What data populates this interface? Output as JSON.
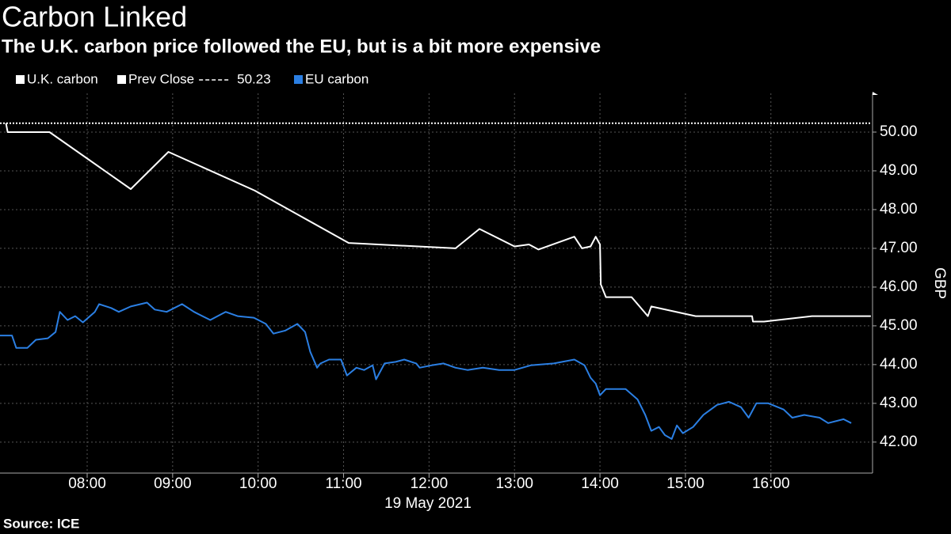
{
  "chart_data": {
    "type": "line",
    "title": "Carbon Linked",
    "subtitle": "The U.K. carbon price followed the EU, but is a bit more expensive",
    "x_label": "19 May 2021",
    "y_label": "GBP",
    "source": "Source: ICE",
    "grid": true,
    "xlim": [
      6.98,
      17.18
    ],
    "xticks": [
      {
        "value": 8,
        "label": "08:00"
      },
      {
        "value": 9,
        "label": "09:00"
      },
      {
        "value": 10,
        "label": "10:00"
      },
      {
        "value": 11,
        "label": "11:00"
      },
      {
        "value": 12,
        "label": "12:00"
      },
      {
        "value": 13,
        "label": "13:00"
      },
      {
        "value": 14,
        "label": "14:00"
      },
      {
        "value": 15,
        "label": "15:00"
      },
      {
        "value": 16,
        "label": "16:00"
      }
    ],
    "ylim": [
      41.2,
      51.0
    ],
    "yticks": [
      {
        "value": 42,
        "label": "42.00"
      },
      {
        "value": 43,
        "label": "43.00"
      },
      {
        "value": 44,
        "label": "44.00"
      },
      {
        "value": 45,
        "label": "45.00"
      },
      {
        "value": 46,
        "label": "46.00"
      },
      {
        "value": 47,
        "label": "47.00"
      },
      {
        "value": 48,
        "label": "48.00"
      },
      {
        "value": 49,
        "label": "49.00"
      },
      {
        "value": 50,
        "label": "50.00"
      }
    ],
    "prev_close": {
      "name": "Prev Close",
      "value": 50.23,
      "color": "#ffffff"
    },
    "series": [
      {
        "name": "U.K. carbon",
        "color": "#ffffff",
        "x": [
          7.05,
          7.07,
          7.56,
          8.51,
          8.95,
          9.96,
          11.06,
          12.31,
          12.59,
          13.0,
          13.17,
          13.28,
          13.7,
          13.79,
          13.89,
          13.95,
          14.0,
          14.01,
          14.07,
          14.37,
          14.56,
          14.6,
          15.12,
          15.78,
          15.79,
          15.92,
          16.48,
          16.65,
          17.17
        ],
        "values": [
          50.23,
          50.0,
          50.0,
          48.53,
          49.49,
          48.49,
          47.14,
          47.0,
          47.5,
          47.05,
          47.1,
          46.97,
          47.3,
          47.0,
          47.05,
          47.3,
          47.1,
          46.07,
          45.74,
          45.74,
          45.25,
          45.5,
          45.25,
          45.25,
          45.11,
          45.11,
          45.25,
          45.25,
          45.25
        ]
      },
      {
        "name": "EU carbon",
        "color": "#2b7fe3",
        "x": [
          6.98,
          7.12,
          7.17,
          7.3,
          7.4,
          7.54,
          7.63,
          7.68,
          7.77,
          7.86,
          7.95,
          8.09,
          8.14,
          8.28,
          8.37,
          8.51,
          8.7,
          8.79,
          8.93,
          9.11,
          9.25,
          9.44,
          9.62,
          9.76,
          9.95,
          10.09,
          10.18,
          10.32,
          10.46,
          10.55,
          10.61,
          10.69,
          10.73,
          10.83,
          10.97,
          11.04,
          11.15,
          11.24,
          11.34,
          11.38,
          11.48,
          11.61,
          11.71,
          11.85,
          11.89,
          12.03,
          12.17,
          12.31,
          12.45,
          12.63,
          12.82,
          13.0,
          13.19,
          13.46,
          13.7,
          13.82,
          13.89,
          13.95,
          14.0,
          14.07,
          14.3,
          14.44,
          14.53,
          14.6,
          14.69,
          14.76,
          14.84,
          14.9,
          14.97,
          15.09,
          15.21,
          15.37,
          15.51,
          15.65,
          15.74,
          15.83,
          15.97,
          16.15,
          16.25,
          16.39,
          16.57,
          16.67,
          16.85,
          16.94
        ],
        "values": [
          44.75,
          44.75,
          44.43,
          44.43,
          44.64,
          44.68,
          44.84,
          45.36,
          45.15,
          45.25,
          45.09,
          45.36,
          45.56,
          45.46,
          45.36,
          45.5,
          45.6,
          45.42,
          45.36,
          45.56,
          45.36,
          45.15,
          45.36,
          45.25,
          45.21,
          45.05,
          44.8,
          44.88,
          45.05,
          44.84,
          44.33,
          43.92,
          44.03,
          44.13,
          44.13,
          43.72,
          43.92,
          43.86,
          43.98,
          43.62,
          44.03,
          44.07,
          44.13,
          44.03,
          43.92,
          43.98,
          44.03,
          43.92,
          43.86,
          43.92,
          43.86,
          43.86,
          43.98,
          44.03,
          44.13,
          43.98,
          43.66,
          43.51,
          43.21,
          43.37,
          43.37,
          43.1,
          42.7,
          42.29,
          42.39,
          42.18,
          42.08,
          42.43,
          42.23,
          42.39,
          42.7,
          42.96,
          43.04,
          42.9,
          42.63,
          43.0,
          43.0,
          42.84,
          42.63,
          42.7,
          42.63,
          42.49,
          42.59,
          42.49
        ]
      }
    ]
  }
}
